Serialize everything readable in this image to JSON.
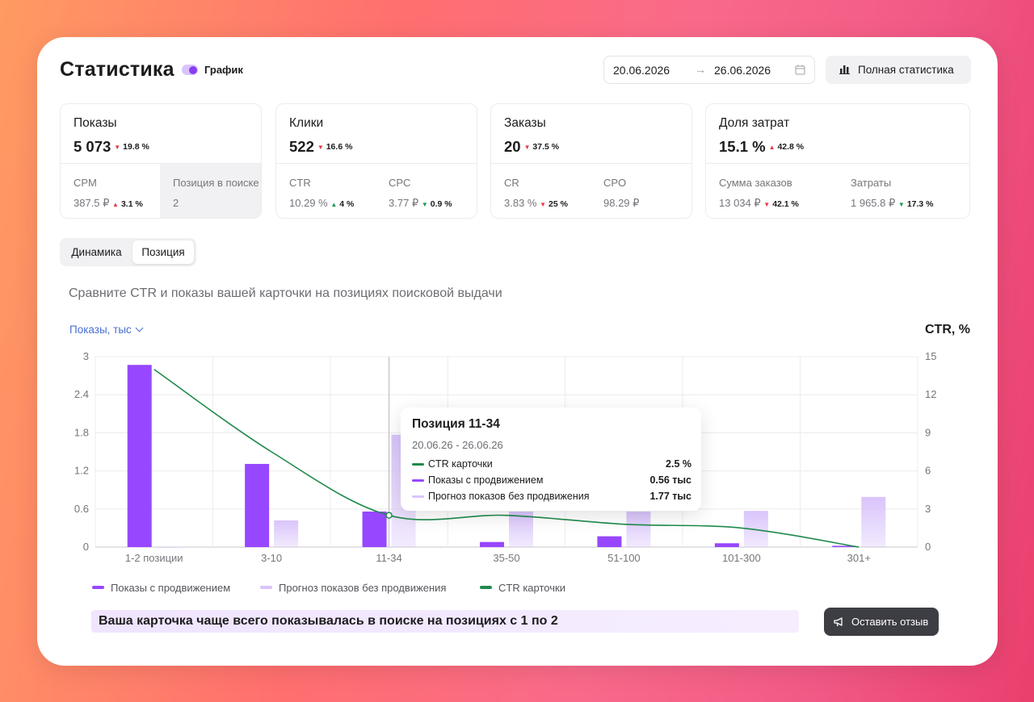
{
  "header": {
    "title": "Статистика",
    "chart_toggle_label": "График",
    "date_from": "20.06.2026",
    "date_to": "26.06.2026",
    "full_stats_label": "Полная статистика"
  },
  "stats": [
    {
      "title": "Показы",
      "value": "5 073",
      "delta": "19.8 %",
      "delta_dir": "down",
      "subs": [
        {
          "label": "CPM",
          "value": "387.5 ₽",
          "delta": "3.1 %",
          "delta_dir": "up"
        },
        {
          "label": "Позиция в поиске",
          "value": "2",
          "delta": "",
          "delta_dir": ""
        }
      ]
    },
    {
      "title": "Клики",
      "value": "522",
      "delta": "16.6 %",
      "delta_dir": "down",
      "subs": [
        {
          "label": "CTR",
          "value": "10.29 %",
          "delta": "4 %",
          "delta_dir": "up-green"
        },
        {
          "label": "CPC",
          "value": "3.77 ₽",
          "delta": "0.9 %",
          "delta_dir": "down-green"
        }
      ]
    },
    {
      "title": "Заказы",
      "value": "20",
      "delta": "37.5 %",
      "delta_dir": "down",
      "subs": [
        {
          "label": "CR",
          "value": "3.83 %",
          "delta": "25 %",
          "delta_dir": "down"
        },
        {
          "label": "CPO",
          "value": "98.29 ₽",
          "delta": "",
          "delta_dir": ""
        }
      ]
    },
    {
      "title": "Доля затрат",
      "value": "15.1 %",
      "delta": "42.8 %",
      "delta_dir": "up",
      "subs": [
        {
          "label": "Сумма заказов",
          "value": "13 034 ₽",
          "delta": "42.1 %",
          "delta_dir": "down"
        },
        {
          "label": "Затраты",
          "value": "1 965.8 ₽",
          "delta": "17.3 %",
          "delta_dir": "down-green"
        }
      ]
    }
  ],
  "tabs": [
    "Динамика",
    "Позиция"
  ],
  "active_tab": "Позиция",
  "subtitle": "Сравните CTR и показы вашей карточки на позициях поисковой выдачи",
  "metric_selector": "Показы, тыс",
  "right_axis_label": "CTR, %",
  "tooltip": {
    "title": "Позиция 11-34",
    "dates": "20.06.26 - 26.06.26",
    "rows": [
      {
        "name": "CTR карточки",
        "value": "2.5 %"
      },
      {
        "name": "Показы с продвижением",
        "value": "0.56 тыс"
      },
      {
        "name": "Прогноз показов без продвижения",
        "value": "1.77 тыс"
      }
    ]
  },
  "legend": [
    "Показы с продвижением",
    "Прогноз показов без продвижения",
    "CTR карточки"
  ],
  "insight": "Ваша карточка чаще всего показывалась в поиске на позициях с 1 по 2",
  "feedback_label": "Оставить отзыв",
  "colors": {
    "promoted": "#9747ff",
    "forecast": "#d9c4fb",
    "ctr": "#1f8a4c",
    "accent_link": "#4a6fd1",
    "dark_button": "#3d3d44"
  },
  "chart_data": {
    "type": "bar",
    "categories": [
      "1-2 позиции",
      "3-10",
      "11-34",
      "35-50",
      "51-100",
      "101-300",
      "301+"
    ],
    "series": [
      {
        "name": "Показы с продвижением",
        "axis": "left",
        "values": [
          2.87,
          1.31,
          0.56,
          0.08,
          0.17,
          0.06,
          0.02
        ]
      },
      {
        "name": "Прогноз показов без продвижения",
        "axis": "left",
        "values": [
          0.0,
          0.42,
          1.77,
          0.56,
          0.56,
          0.57,
          0.79
        ]
      },
      {
        "name": "CTR карточки",
        "axis": "right",
        "type": "line",
        "values": [
          14.0,
          7.5,
          2.5,
          2.5,
          1.8,
          1.5,
          0.0
        ]
      }
    ],
    "left_ticks": [
      "0",
      "0.6",
      "1.2",
      "1.8",
      "2.4",
      "3"
    ],
    "right_ticks": [
      "0",
      "3",
      "6",
      "9",
      "12",
      "15"
    ],
    "ylabel": "Показы, тыс",
    "y2label": "CTR, %",
    "ylim": [
      0,
      3
    ],
    "y2lim": [
      0,
      15
    ],
    "highlighted_category": "11-34",
    "grid": true,
    "legend_position": "bottom-left"
  }
}
